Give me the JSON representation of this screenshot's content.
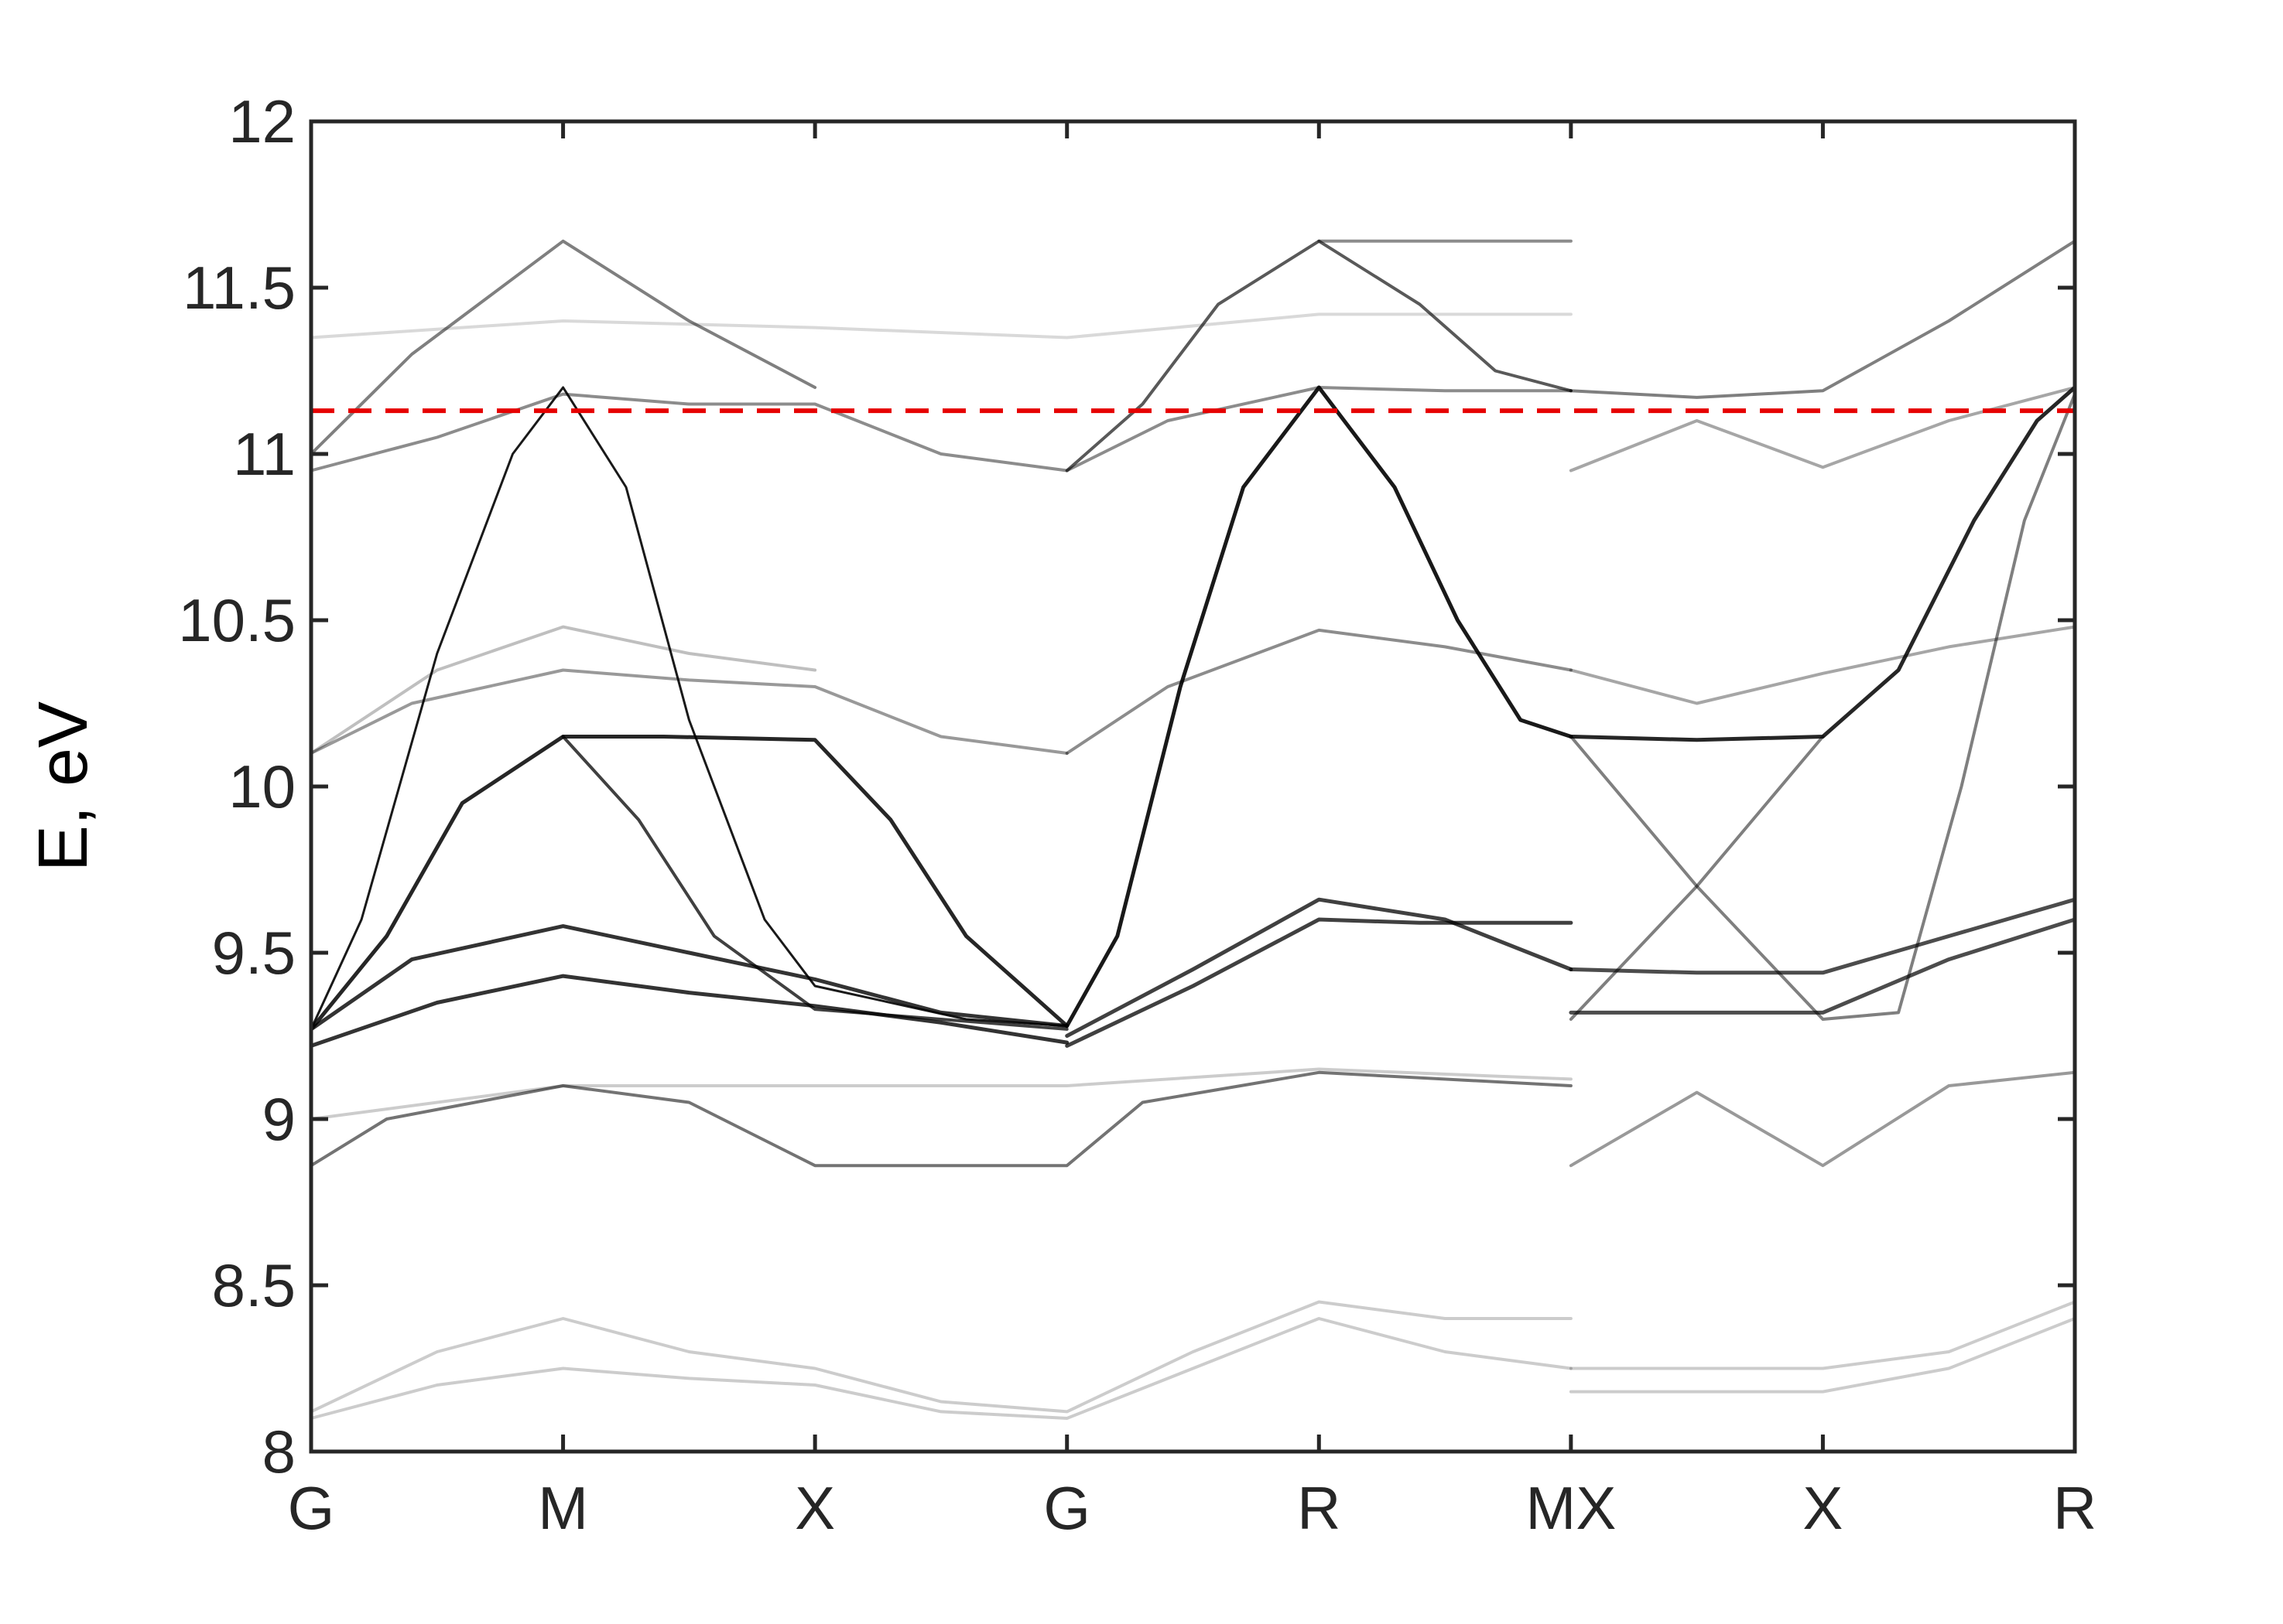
{
  "chart_data": {
    "type": "line",
    "title": "",
    "xlabel": "",
    "ylabel": "E, eV",
    "ylim": [
      8,
      12
    ],
    "y_ticks": [
      "8",
      "8.5",
      "9",
      "9.5",
      "10",
      "10.5",
      "11",
      "11.5",
      "12"
    ],
    "x_ticks": [
      "G",
      "M",
      "X",
      "G",
      "R",
      "MX",
      "X",
      "R"
    ],
    "grid": false,
    "colors": {
      "axis": "#262626",
      "band": "#000000",
      "reference_line": "#e60000"
    },
    "reference_line": {
      "y": 11.13,
      "style": "dashed",
      "color": "#e60000"
    },
    "x_note": "x is the position along the k-path in segment units: G=0, M=1, X=2, G=3, R=4, MX=5, X=6, R=7 (break at 5)",
    "series": [
      {
        "opacity": 0.9,
        "width": 3,
        "points": [
          [
            0,
            9.27
          ],
          [
            0.2,
            9.6
          ],
          [
            0.5,
            10.4
          ],
          [
            0.8,
            11.0
          ],
          [
            1,
            11.2
          ],
          [
            1.25,
            10.9
          ],
          [
            1.5,
            10.2
          ],
          [
            1.8,
            9.6
          ],
          [
            2,
            9.4
          ],
          [
            2.3,
            9.35
          ],
          [
            2.6,
            9.3
          ],
          [
            3,
            9.28
          ]
        ]
      },
      {
        "opacity": 0.85,
        "width": 5,
        "points": [
          [
            0,
            9.27
          ],
          [
            0.3,
            9.55
          ],
          [
            0.6,
            9.95
          ],
          [
            1,
            10.15
          ],
          [
            1.4,
            10.15
          ],
          [
            2,
            10.14
          ],
          [
            2.3,
            9.9
          ],
          [
            2.6,
            9.55
          ],
          [
            3,
            9.28
          ]
        ]
      },
      {
        "opacity": 0.75,
        "width": 4,
        "points": [
          [
            1,
            10.15
          ],
          [
            1.3,
            9.9
          ],
          [
            1.6,
            9.55
          ],
          [
            2,
            9.33
          ],
          [
            2.5,
            9.3
          ],
          [
            3,
            9.27
          ]
        ]
      },
      {
        "opacity": 0.9,
        "width": 5,
        "points": [
          [
            3,
            9.28
          ],
          [
            3.2,
            9.55
          ],
          [
            3.45,
            10.3
          ],
          [
            3.7,
            10.9
          ],
          [
            4,
            11.2
          ],
          [
            4.3,
            10.9
          ],
          [
            4.55,
            10.5
          ],
          [
            4.8,
            10.2
          ],
          [
            5,
            10.15
          ]
        ]
      },
      {
        "opacity": 0.8,
        "width": 5,
        "points": [
          [
            0,
            9.27
          ],
          [
            0.4,
            9.48
          ],
          [
            1,
            9.58
          ],
          [
            1.5,
            9.5
          ],
          [
            2,
            9.42
          ],
          [
            2.5,
            9.32
          ],
          [
            3,
            9.28
          ]
        ]
      },
      {
        "opacity": 0.8,
        "width": 5,
        "points": [
          [
            0,
            9.22
          ],
          [
            0.5,
            9.35
          ],
          [
            1,
            9.43
          ],
          [
            1.5,
            9.38
          ],
          [
            2,
            9.34
          ],
          [
            2.5,
            9.29
          ],
          [
            3,
            9.23
          ]
        ]
      },
      {
        "opacity": 0.75,
        "width": 5,
        "points": [
          [
            3,
            9.25
          ],
          [
            3.5,
            9.45
          ],
          [
            4,
            9.66
          ],
          [
            4.5,
            9.6
          ],
          [
            5,
            9.45
          ]
        ]
      },
      {
        "opacity": 0.75,
        "width": 5,
        "points": [
          [
            3,
            9.22
          ],
          [
            3.5,
            9.4
          ],
          [
            4,
            9.6
          ],
          [
            4.4,
            9.59
          ],
          [
            5,
            9.59
          ]
        ]
      },
      {
        "opacity": 0.45,
        "width": 4,
        "points": [
          [
            3,
            10.1
          ],
          [
            3.4,
            10.3
          ],
          [
            4,
            10.47
          ],
          [
            4.5,
            10.42
          ],
          [
            5,
            10.35
          ]
        ]
      },
      {
        "opacity": 0.4,
        "width": 4,
        "points": [
          [
            0,
            10.1
          ],
          [
            0.4,
            10.25
          ],
          [
            1,
            10.35
          ],
          [
            1.5,
            10.32
          ],
          [
            2,
            10.3
          ],
          [
            2.5,
            10.15
          ],
          [
            3,
            10.1
          ]
        ]
      },
      {
        "opacity": 0.25,
        "width": 4,
        "points": [
          [
            0,
            10.1
          ],
          [
            0.5,
            10.35
          ],
          [
            1,
            10.48
          ],
          [
            1.5,
            10.4
          ],
          [
            2,
            10.35
          ]
        ]
      },
      {
        "opacity": 0.45,
        "width": 4,
        "points": [
          [
            0,
            10.95
          ],
          [
            0.5,
            11.05
          ],
          [
            1,
            11.18
          ],
          [
            1.5,
            11.15
          ],
          [
            2,
            11.15
          ],
          [
            2.5,
            11.0
          ],
          [
            3,
            10.95
          ],
          [
            3.4,
            11.1
          ],
          [
            4,
            11.2
          ],
          [
            4.5,
            11.19
          ],
          [
            5,
            11.19
          ]
        ]
      },
      {
        "opacity": 0.5,
        "width": 4,
        "points": [
          [
            0,
            11.0
          ],
          [
            0.4,
            11.3
          ],
          [
            1,
            11.64
          ],
          [
            1.5,
            11.4
          ],
          [
            2,
            11.2
          ]
        ]
      },
      {
        "opacity": 0.15,
        "width": 4,
        "points": [
          [
            0,
            11.35
          ],
          [
            1,
            11.4
          ],
          [
            2,
            11.38
          ],
          [
            3,
            11.35
          ],
          [
            4,
            11.42
          ],
          [
            5,
            11.42
          ]
        ]
      },
      {
        "opacity": 0.65,
        "width": 4,
        "points": [
          [
            3,
            10.95
          ],
          [
            3.3,
            11.15
          ],
          [
            3.6,
            11.45
          ],
          [
            4,
            11.64
          ],
          [
            4.4,
            11.45
          ],
          [
            4.7,
            11.25
          ],
          [
            5,
            11.19
          ]
        ]
      },
      {
        "opacity": 0.45,
        "width": 4,
        "points": [
          [
            4,
            11.64
          ],
          [
            5,
            11.64
          ]
        ]
      },
      {
        "opacity": 0.55,
        "width": 4,
        "points": [
          [
            0,
            8.86
          ],
          [
            0.3,
            9.0
          ],
          [
            1,
            9.1
          ],
          [
            1.5,
            9.05
          ],
          [
            2,
            8.86
          ],
          [
            2.5,
            8.86
          ],
          [
            3,
            8.86
          ],
          [
            3.3,
            9.05
          ],
          [
            4,
            9.14
          ],
          [
            5,
            9.1
          ]
        ]
      },
      {
        "opacity": 0.2,
        "width": 4,
        "points": [
          [
            0,
            9.0
          ],
          [
            1,
            9.1
          ],
          [
            2,
            9.1
          ],
          [
            3,
            9.1
          ],
          [
            4,
            9.15
          ],
          [
            5,
            9.12
          ]
        ]
      },
      {
        "opacity": 0.2,
        "width": 4,
        "points": [
          [
            0,
            8.12
          ],
          [
            0.5,
            8.3
          ],
          [
            1,
            8.4
          ],
          [
            1.5,
            8.3
          ],
          [
            2,
            8.25
          ],
          [
            2.5,
            8.15
          ],
          [
            3,
            8.12
          ],
          [
            3.5,
            8.3
          ],
          [
            4,
            8.45
          ],
          [
            4.5,
            8.4
          ],
          [
            5,
            8.4
          ]
        ]
      },
      {
        "opacity": 0.2,
        "width": 4,
        "points": [
          [
            0,
            8.1
          ],
          [
            0.5,
            8.2
          ],
          [
            1,
            8.25
          ],
          [
            1.5,
            8.22
          ],
          [
            2,
            8.2
          ],
          [
            2.5,
            8.12
          ],
          [
            3,
            8.1
          ],
          [
            3.5,
            8.25
          ],
          [
            4,
            8.4
          ],
          [
            4.5,
            8.3
          ],
          [
            5,
            8.25
          ]
        ]
      },
      {
        "opacity": 0.85,
        "width": 5,
        "points": [
          [
            5,
            10.15
          ],
          [
            5.5,
            10.14
          ],
          [
            6,
            10.15
          ],
          [
            6.3,
            10.35
          ],
          [
            6.6,
            10.8
          ],
          [
            6.85,
            11.1
          ],
          [
            7,
            11.2
          ]
        ]
      },
      {
        "opacity": 0.5,
        "width": 4,
        "points": [
          [
            5,
            10.15
          ],
          [
            5.5,
            9.7
          ],
          [
            6,
            9.3
          ],
          [
            6.3,
            9.32
          ],
          [
            6.55,
            10.0
          ],
          [
            6.8,
            10.8
          ],
          [
            7,
            11.18
          ]
        ]
      },
      {
        "opacity": 0.5,
        "width": 4,
        "points": [
          [
            5,
            9.3
          ],
          [
            5.5,
            9.7
          ],
          [
            6,
            10.15
          ]
        ]
      },
      {
        "opacity": 0.7,
        "width": 5,
        "points": [
          [
            5,
            9.45
          ],
          [
            5.5,
            9.44
          ],
          [
            6,
            9.44
          ],
          [
            6.5,
            9.55
          ],
          [
            7,
            9.66
          ]
        ]
      },
      {
        "opacity": 0.7,
        "width": 5,
        "points": [
          [
            5,
            9.32
          ],
          [
            5.5,
            9.32
          ],
          [
            6,
            9.32
          ],
          [
            6.5,
            9.48
          ],
          [
            7,
            9.6
          ]
        ]
      },
      {
        "opacity": 0.5,
        "width": 4,
        "points": [
          [
            5,
            11.19
          ],
          [
            5.5,
            11.17
          ],
          [
            6,
            11.19
          ],
          [
            6.5,
            11.4
          ],
          [
            7,
            11.64
          ]
        ]
      },
      {
        "opacity": 0.35,
        "width": 4,
        "points": [
          [
            5,
            10.95
          ],
          [
            5.5,
            11.1
          ],
          [
            6,
            10.96
          ],
          [
            6.5,
            11.1
          ],
          [
            7,
            11.2
          ]
        ]
      },
      {
        "opacity": 0.35,
        "width": 4,
        "points": [
          [
            5,
            10.35
          ],
          [
            5.5,
            10.25
          ],
          [
            6,
            10.34
          ],
          [
            6.5,
            10.42
          ],
          [
            7,
            10.48
          ]
        ]
      },
      {
        "opacity": 0.4,
        "width": 4,
        "points": [
          [
            5,
            8.86
          ],
          [
            5.5,
            9.08
          ],
          [
            6,
            8.86
          ],
          [
            6.5,
            9.1
          ],
          [
            7,
            9.14
          ]
        ]
      },
      {
        "opacity": 0.2,
        "width": 4,
        "points": [
          [
            5,
            8.25
          ],
          [
            6,
            8.25
          ],
          [
            6.5,
            8.3
          ],
          [
            7,
            8.45
          ]
        ]
      },
      {
        "opacity": 0.2,
        "width": 4,
        "points": [
          [
            5,
            8.18
          ],
          [
            6,
            8.18
          ],
          [
            6.5,
            8.25
          ],
          [
            7,
            8.4
          ]
        ]
      }
    ]
  }
}
